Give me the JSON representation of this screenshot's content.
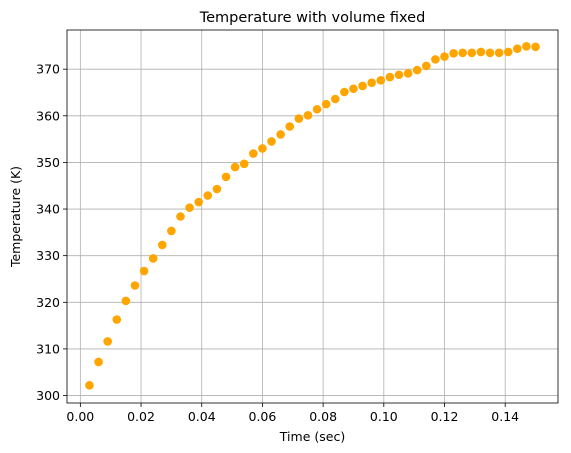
{
  "chart_data": {
    "type": "scatter",
    "title": "Temperature with volume fixed",
    "xlabel": "Time (sec)",
    "ylabel": "Temperature (K)",
    "xlim": [
      -0.0044,
      0.1574
    ],
    "ylim": [
      298.4,
      378.4
    ],
    "xticks": [
      0.0,
      0.02,
      0.04,
      0.06,
      0.08,
      0.1,
      0.12,
      0.14
    ],
    "xtick_labels": [
      "0.00",
      "0.02",
      "0.04",
      "0.06",
      "0.08",
      "0.10",
      "0.12",
      "0.14"
    ],
    "yticks": [
      300,
      310,
      320,
      330,
      340,
      350,
      360,
      370
    ],
    "ytick_labels": [
      "300",
      "310",
      "320",
      "330",
      "340",
      "350",
      "360",
      "370"
    ],
    "grid": true,
    "legend": "none",
    "marker_color": "#ffa500",
    "series": [
      {
        "x": [
          0.003,
          0.006,
          0.009,
          0.012,
          0.015,
          0.018,
          0.021,
          0.024,
          0.027,
          0.03,
          0.033,
          0.036,
          0.039,
          0.042,
          0.045,
          0.048,
          0.051,
          0.054,
          0.057,
          0.06,
          0.063,
          0.066,
          0.069,
          0.072,
          0.075,
          0.078,
          0.081,
          0.084,
          0.087,
          0.09,
          0.093,
          0.096,
          0.099,
          0.102,
          0.105,
          0.108,
          0.111,
          0.114,
          0.117,
          0.12,
          0.123,
          0.126,
          0.129,
          0.132,
          0.135,
          0.138,
          0.141,
          0.144,
          0.147,
          0.15
        ],
        "y": [
          302.2,
          307.2,
          311.6,
          316.3,
          320.3,
          323.6,
          326.7,
          329.4,
          332.3,
          335.3,
          338.4,
          340.3,
          341.5,
          342.9,
          344.3,
          346.9,
          349.0,
          349.7,
          351.9,
          353.0,
          354.5,
          356.0,
          357.7,
          359.4,
          360.1,
          361.4,
          362.5,
          363.6,
          365.1,
          365.8,
          366.4,
          367.1,
          367.6,
          368.3,
          368.8,
          369.1,
          369.8,
          370.7,
          372.1,
          372.7,
          373.4,
          373.5,
          373.5,
          373.7,
          373.5,
          373.5,
          373.7,
          374.4,
          374.9,
          374.8
        ]
      }
    ]
  }
}
